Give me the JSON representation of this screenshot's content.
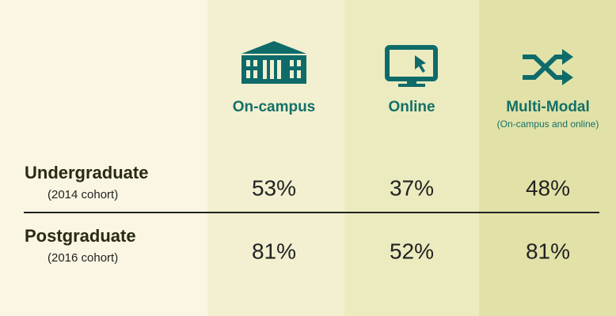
{
  "table": {
    "columns": [
      {
        "label": "On-campus"
      },
      {
        "label": "Online"
      },
      {
        "label": "Multi-Modal",
        "note": "(On-campus and online)"
      }
    ],
    "rows": [
      {
        "label": "Undergraduate",
        "cohort": "(2014 cohort)",
        "values": [
          "53%",
          "37%",
          "48%"
        ]
      },
      {
        "label": "Postgraduate",
        "cohort": "(2016 cohort)",
        "values": [
          "81%",
          "52%",
          "81%"
        ]
      }
    ]
  }
}
